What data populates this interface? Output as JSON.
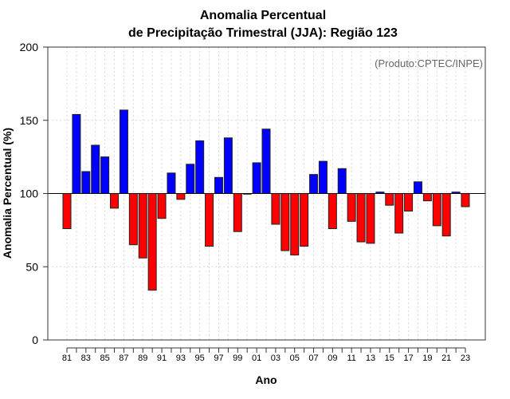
{
  "chart_data": {
    "type": "bar",
    "title_line1": "Anomalia Percentual",
    "title_line2": "de Precipitação Trimestral (JJA): Região 123",
    "annotation": "(Produto:CPTEC/INPE)",
    "xlabel": "Ano",
    "ylabel": "Anomalia Percentual (%)",
    "ylim": [
      0,
      200
    ],
    "yticks": [
      0,
      50,
      100,
      150,
      200
    ],
    "baseline": 100,
    "grid": true,
    "colors": {
      "above": "#0000ff",
      "below": "#ff0000"
    },
    "x": [
      1981,
      1982,
      1983,
      1984,
      1985,
      1986,
      1987,
      1988,
      1989,
      1990,
      1991,
      1992,
      1993,
      1994,
      1995,
      1996,
      1997,
      1998,
      1999,
      2000,
      2001,
      2002,
      2003,
      2004,
      2005,
      2006,
      2007,
      2008,
      2009,
      2010,
      2011,
      2012,
      2013,
      2014,
      2015,
      2016,
      2017,
      2018,
      2019,
      2020,
      2021,
      2022,
      2023
    ],
    "xtick_labels": [
      "81",
      "83",
      "85",
      "87",
      "89",
      "91",
      "93",
      "95",
      "97",
      "99",
      "01",
      "03",
      "05",
      "07",
      "09",
      "11",
      "13",
      "15",
      "17",
      "19",
      "21",
      "23"
    ],
    "values": [
      76,
      154,
      115,
      133,
      125,
      90,
      157,
      65,
      56,
      34,
      83,
      114,
      96,
      120,
      136,
      64,
      111,
      138,
      74,
      100,
      121,
      144,
      79,
      61,
      58,
      64,
      113,
      122,
      76,
      117,
      81,
      67,
      66,
      101,
      92,
      73,
      88,
      108,
      95,
      78,
      71,
      101,
      91
    ]
  }
}
